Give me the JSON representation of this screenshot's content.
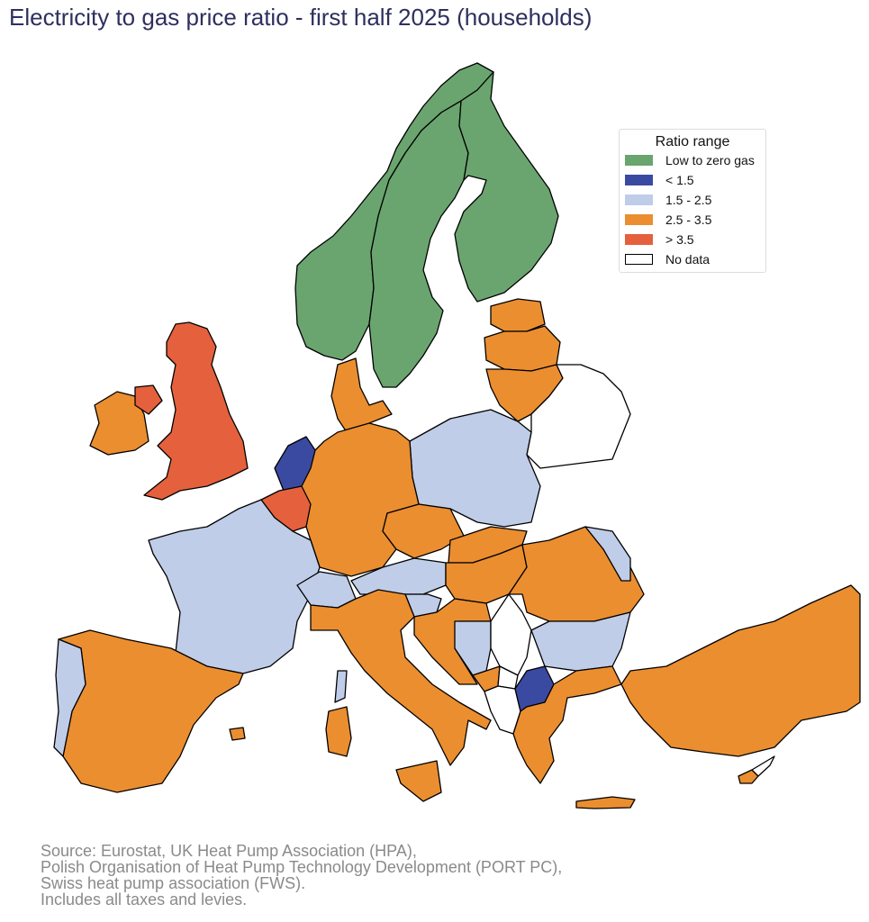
{
  "title": "Electricity to gas price ratio - first half 2025 (households)",
  "legend": {
    "title": "Ratio range",
    "items": [
      {
        "key": "low",
        "label": "Low to zero gas",
        "color": "#6aa56f"
      },
      {
        "key": "lt15",
        "label": "< 1.5",
        "color": "#3b4aa1"
      },
      {
        "key": "r1525",
        "label": "1.5 - 2.5",
        "color": "#bfcde8"
      },
      {
        "key": "r2535",
        "label": "2.5 - 3.5",
        "color": "#eb8e30"
      },
      {
        "key": "gt35",
        "label": "> 3.5",
        "color": "#e5603c"
      },
      {
        "key": "nodata",
        "label": "No data",
        "color": "#ffffff"
      }
    ]
  },
  "regions": {
    "norway": "low",
    "sweden": "low",
    "finland": "low",
    "netherlands": "lt15",
    "north-macedonia": "lt15",
    "france": "r1525",
    "corsica": "r1525",
    "portugal": "r1525",
    "poland": "r1525",
    "switzerland": "r1525",
    "austria": "r1525",
    "slovenia": "r1525",
    "bosnia": "r1525",
    "bulgaria": "r1525",
    "moldova": "r1525",
    "ireland": "r2535",
    "spain": "r2535",
    "balearics": "r2535",
    "italy": "r2535",
    "sicily": "r2535",
    "sardinia": "r2535",
    "germany": "r2535",
    "denmark": "r2535",
    "czechia": "r2535",
    "slovakia": "r2535",
    "hungary": "r2535",
    "romania": "r2535",
    "croatia": "r2535",
    "montenegro": "r2535",
    "greece": "r2535",
    "crete": "r2535",
    "turkey": "r2535",
    "estonia": "r2535",
    "latvia": "r2535",
    "lithuania": "r2535",
    "cyprus": "r2535",
    "united-kingdom": "gt35",
    "northern-ireland": "gt35",
    "belgium": "gt35",
    "belarus": "nodata",
    "serbia": "nodata",
    "albania": "nodata",
    "kosovo": "nodata",
    "northern-cyprus": "nodata"
  },
  "source": [
    "Source: Eurostat, UK Heat Pump Association (HPA),",
    "Polish Organisation of Heat Pump Technology Development (PORT PC),",
    "Swiss heat pump association (FWS).",
    "Includes all taxes and levies."
  ]
}
